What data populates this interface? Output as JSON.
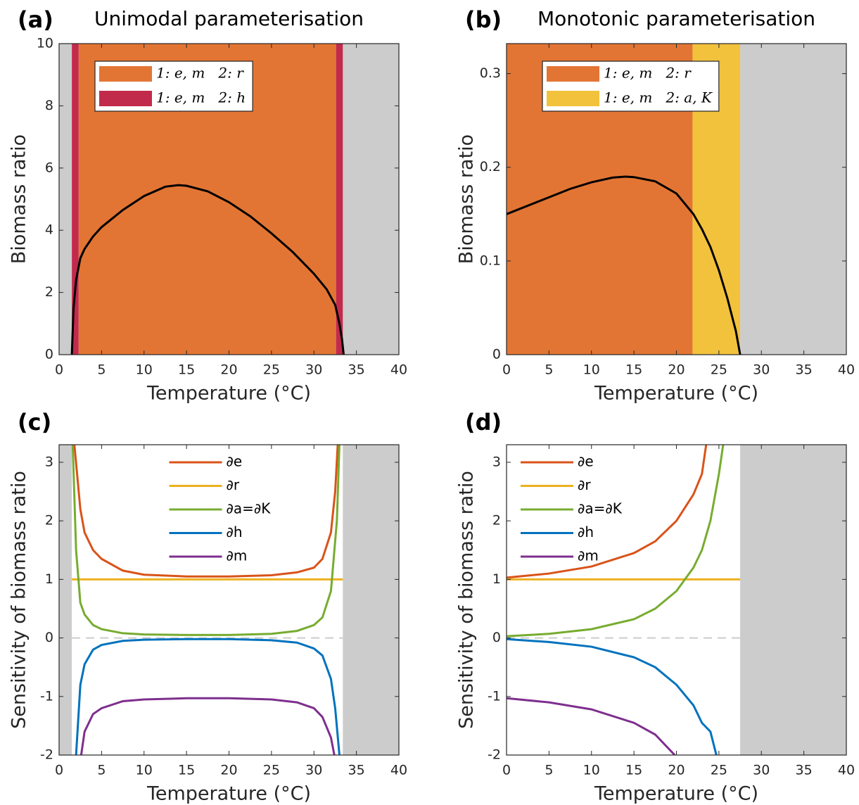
{
  "chart_data": [
    {
      "type": "line",
      "label": "(a)",
      "title": "Unimodal parameterisation",
      "xlabel": "Temperature (°C)",
      "ylabel": "Biomass ratio",
      "xlim": [
        0,
        40
      ],
      "xticks": [
        0,
        5,
        10,
        15,
        20,
        25,
        30,
        35,
        40
      ],
      "ylim": [
        0,
        10
      ],
      "yticks": [
        0,
        2,
        4,
        6,
        8,
        10
      ],
      "legend": "upper left",
      "legend_box": true,
      "shaded": {
        "color": "#cccccc",
        "spans": [
          [
            0,
            1.5
          ],
          [
            33.4,
            40
          ]
        ]
      },
      "regions": [
        {
          "name": "1: e, m   2: r",
          "color": "#e37534",
          "spans": [
            [
              2.3,
              32.6
            ]
          ]
        },
        {
          "name": "1: e, m   2: h",
          "color": "#c22a4c",
          "spans": [
            [
              1.5,
              2.3
            ],
            [
              32.6,
              33.4
            ]
          ]
        }
      ],
      "series": [
        {
          "color": "#000000",
          "x": [
            1.5,
            1.7,
            2,
            2.5,
            3,
            4,
            5,
            7.5,
            10,
            12.5,
            14,
            15,
            17.5,
            20,
            22.5,
            25,
            27.5,
            30,
            31.5,
            32.5,
            33,
            33.3,
            33.5
          ],
          "values": [
            0,
            1.5,
            2.4,
            3.1,
            3.4,
            3.8,
            4.1,
            4.65,
            5.1,
            5.4,
            5.45,
            5.43,
            5.25,
            4.9,
            4.45,
            3.9,
            3.3,
            2.6,
            2.1,
            1.6,
            1.0,
            0.5,
            0
          ]
        }
      ]
    },
    {
      "type": "line",
      "label": "(b)",
      "title": "Monotonic parameterisation",
      "xlabel": "Temperature (°C)",
      "ylabel": "Biomass ratio",
      "xlim": [
        0,
        40
      ],
      "xticks": [
        0,
        5,
        10,
        15,
        20,
        25,
        30,
        35,
        40
      ],
      "ylim": [
        0,
        0.332
      ],
      "yticks": [
        0,
        0.1,
        0.2,
        0.3
      ],
      "legend": "upper left",
      "legend_box": true,
      "shaded": {
        "color": "#cccccc",
        "spans": [
          [
            27.5,
            40
          ]
        ]
      },
      "regions": [
        {
          "name": "1: e, m   2: r",
          "color": "#e37534",
          "spans": [
            [
              0,
              21.9
            ]
          ]
        },
        {
          "name": "1: e, m   2: a, K",
          "color": "#f2c23c",
          "spans": [
            [
              21.9,
              27.5
            ]
          ]
        }
      ],
      "series": [
        {
          "color": "#000000",
          "x": [
            0,
            2.5,
            5,
            7.5,
            10,
            12.5,
            14,
            15,
            17.5,
            20,
            22,
            23,
            24,
            25,
            26,
            27,
            27.5
          ],
          "values": [
            0.15,
            0.159,
            0.168,
            0.177,
            0.184,
            0.189,
            0.19,
            0.1895,
            0.185,
            0.172,
            0.15,
            0.134,
            0.115,
            0.09,
            0.06,
            0.025,
            0
          ]
        }
      ]
    },
    {
      "type": "line",
      "label": "(c)",
      "xlabel": "Temperature (°C)",
      "ylabel": "Sensitivity of biomass ratio",
      "xlim": [
        0,
        40
      ],
      "xticks": [
        0,
        5,
        10,
        15,
        20,
        25,
        30,
        35,
        40
      ],
      "ylim": [
        -2,
        3.3
      ],
      "yticks": [
        -2,
        -1,
        0,
        1,
        2,
        3
      ],
      "legend": "upper center",
      "legend_box": false,
      "shaded": {
        "color": "#cccccc",
        "spans": [
          [
            0,
            1.5
          ],
          [
            33.4,
            40
          ]
        ]
      },
      "zero_line": {
        "y": 0,
        "x": [
          1.5,
          33.4
        ],
        "color": "#cccccc"
      },
      "series": [
        {
          "name": "∂e",
          "color": "#d95319",
          "x": [
            1.8,
            2.5,
            3,
            4,
            5,
            7.5,
            10,
            15,
            20,
            25,
            28,
            30,
            31,
            32,
            32.5,
            32.8
          ],
          "values": [
            3.3,
            2.2,
            1.8,
            1.5,
            1.35,
            1.15,
            1.08,
            1.05,
            1.05,
            1.07,
            1.12,
            1.2,
            1.35,
            1.8,
            2.5,
            3.3
          ]
        },
        {
          "name": "∂r",
          "color": "#edb120",
          "x": [
            1.5,
            33.4
          ],
          "values": [
            1,
            1
          ]
        },
        {
          "name": "∂a=∂K",
          "color": "#77ac30",
          "x": [
            1.6,
            2,
            2.5,
            3,
            4,
            5,
            7.5,
            10,
            15,
            20,
            25,
            28,
            30,
            31,
            32,
            32.7,
            33
          ],
          "values": [
            3.3,
            1.5,
            0.6,
            0.4,
            0.22,
            0.15,
            0.08,
            0.06,
            0.05,
            0.05,
            0.07,
            0.12,
            0.22,
            0.35,
            0.8,
            2,
            3.3
          ]
        },
        {
          "name": "∂h",
          "color": "#0072bd",
          "x": [
            2,
            2.5,
            3,
            4,
            5,
            7.5,
            10,
            15,
            20,
            25,
            28,
            30,
            31,
            32,
            32.5,
            33
          ],
          "values": [
            -2,
            -0.8,
            -0.45,
            -0.2,
            -0.12,
            -0.05,
            -0.03,
            -0.02,
            -0.02,
            -0.04,
            -0.08,
            -0.18,
            -0.3,
            -0.7,
            -1.2,
            -2
          ]
        },
        {
          "name": "∂m",
          "color": "#7e2f8e",
          "x": [
            2.6,
            3,
            4,
            5,
            7.5,
            10,
            15,
            20,
            25,
            28,
            30,
            31,
            32,
            32.4
          ],
          "values": [
            -2,
            -1.6,
            -1.3,
            -1.2,
            -1.08,
            -1.05,
            -1.03,
            -1.03,
            -1.05,
            -1.1,
            -1.2,
            -1.35,
            -1.7,
            -2
          ]
        }
      ]
    },
    {
      "type": "line",
      "label": "(d)",
      "xlabel": "Temperature (°C)",
      "ylabel": "Sensitivity of biomass ratio",
      "xlim": [
        0,
        40
      ],
      "xticks": [
        0,
        5,
        10,
        15,
        20,
        25,
        30,
        35,
        40
      ],
      "ylim": [
        -2,
        3.3
      ],
      "yticks": [
        -2,
        -1,
        0,
        1,
        2,
        3
      ],
      "legend": "upper left",
      "legend_box": false,
      "shaded": {
        "color": "#cccccc",
        "spans": [
          [
            27.5,
            40
          ]
        ]
      },
      "zero_line": {
        "y": 0,
        "x": [
          0,
          27.5
        ],
        "color": "#cccccc"
      },
      "series": [
        {
          "name": "∂e",
          "color": "#d95319",
          "x": [
            0,
            5,
            10,
            15,
            17.5,
            20,
            22,
            23,
            23.5
          ],
          "values": [
            1.03,
            1.1,
            1.22,
            1.45,
            1.65,
            2.0,
            2.45,
            2.8,
            3.3
          ]
        },
        {
          "name": "∂r",
          "color": "#edb120",
          "x": [
            0,
            27.5
          ],
          "values": [
            1,
            1
          ]
        },
        {
          "name": "∂a=∂K",
          "color": "#77ac30",
          "x": [
            0,
            5,
            10,
            15,
            17.5,
            20,
            22,
            23,
            24,
            25,
            25.5
          ],
          "values": [
            0.03,
            0.07,
            0.15,
            0.32,
            0.5,
            0.8,
            1.2,
            1.5,
            2.0,
            2.8,
            3.3
          ]
        },
        {
          "name": "∂h",
          "color": "#0072bd",
          "x": [
            0,
            5,
            10,
            15,
            17.5,
            20,
            22,
            23,
            24,
            24.7
          ],
          "values": [
            -0.02,
            -0.07,
            -0.15,
            -0.33,
            -0.5,
            -0.8,
            -1.15,
            -1.45,
            -1.6,
            -2
          ]
        },
        {
          "name": "∂m",
          "color": "#7e2f8e",
          "x": [
            0,
            5,
            10,
            15,
            17.5,
            19.8
          ],
          "values": [
            -1.03,
            -1.1,
            -1.22,
            -1.45,
            -1.65,
            -2
          ]
        }
      ]
    }
  ]
}
